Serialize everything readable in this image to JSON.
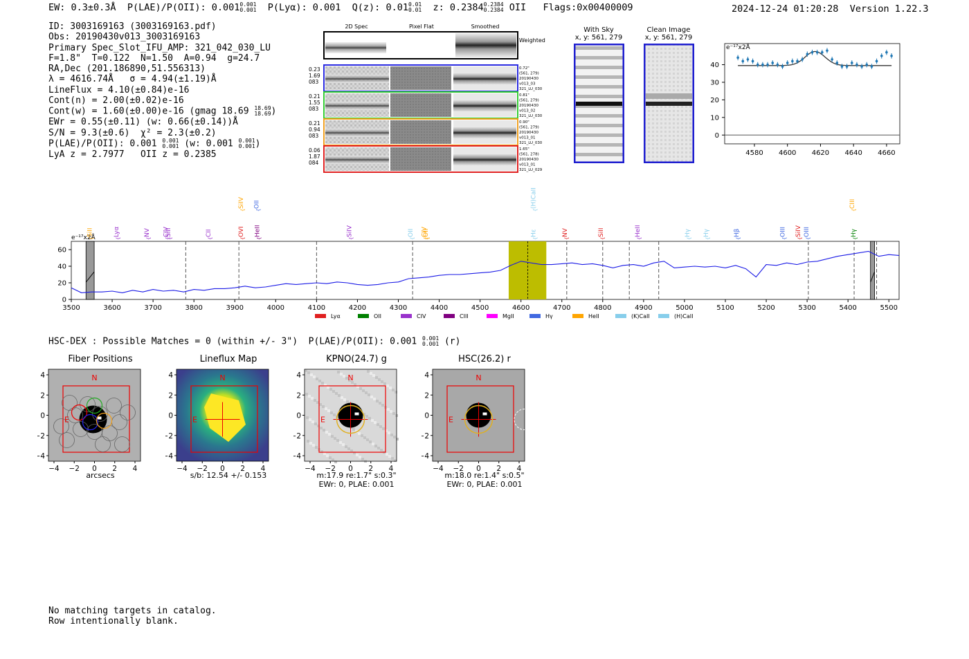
{
  "header": {
    "ew_label": "EW: 0.3±0.3Å",
    "plae_label": "P(LAE)/P(OII): 0.001",
    "plae_hi": "0.001",
    "plae_lo": "0.001",
    "plya_label": "P(Lyα): 0.001",
    "qz_label": "Q(z): 0.01",
    "qz_hi": "0.01",
    "qz_lo": "0.01",
    "z_label": "z: 0.2384",
    "z_hi": "0.2384",
    "z_lo": "0.2384",
    "line_label": "OII",
    "flags": "Flags:0x00400009",
    "timestamp": "2024-12-24 01:20:28",
    "version": "Version 1.22.3"
  },
  "info": {
    "id": "ID: 3003169163 (3003169163.pdf)",
    "obs": "Obs: 20190430v013_3003169163",
    "primary": "Primary Spec_Slot_IFU_AMP: 321_042_030_LU",
    "fparams": "F=1.8\"  T=0.122  N=1.50  A=0.94  g=24.7",
    "radec": "RA,Dec (201.186890,51.556313)",
    "lambda": "λ = 4616.74Å   σ = 4.94(±1.19)Å",
    "lineflux": "LineFlux = 4.10(±0.84)e-16",
    "contn": "Cont(n) = 2.00(±0.02)e-16",
    "contw": "Cont(w) = 1.60(±0.00)e-16 (gmag 18.69",
    "gmag_hi": "18.69",
    "gmag_lo": "18.69",
    "ewr": "EWr = 0.55(±0.11) (w: 0.66(±0.14))Å",
    "sn": "S/N = 9.3(±0.6)  χ² = 2.3(±0.2)",
    "plae": "P(LAE)/P(OII): 0.001",
    "plae_hi": "0.001",
    "plae_lo": "0.001",
    "plae_w": "(w: 0.001",
    "plaew_hi": "0.001",
    "plaew_lo": "0.001",
    "lyaz": "LyA z = 2.7977   OII z = 0.2385"
  },
  "fiber_panel": {
    "headers": [
      "2D Spec",
      "Pixel Flat",
      "Smoothed"
    ],
    "weighted_label": "Weighted Sum",
    "rows": [
      {
        "left": [
          "0.23",
          "1.69",
          "083"
        ],
        "right": [
          "0.72\"",
          "(561, 279)",
          "20190430",
          "v013_03",
          "321_LU_030"
        ],
        "color": "#2a2ae0"
      },
      {
        "left": [
          "0.21",
          "1.55",
          "083"
        ],
        "right": [
          "0.81\"",
          "(561, 279)",
          "20190430",
          "v013_02",
          "321_LU_030"
        ],
        "color": "#33cc33"
      },
      {
        "left": [
          "0.21",
          "0.94",
          "083"
        ],
        "right": [
          "0.90\"",
          "(561, 279)",
          "20190430",
          "v013_01",
          "321_LU_030"
        ],
        "color": "#f0a020"
      },
      {
        "left": [
          "0.06",
          "1.87",
          "084"
        ],
        "right": [
          "1.65\"",
          "(561, 278)",
          "20190430",
          "v013_01",
          "321_LU_029"
        ],
        "color": "#e02020"
      }
    ]
  },
  "sky_panel": {
    "with_sky": "With Sky",
    "with_sky_xy": "x, y: 561, 279",
    "clean": "Clean Image",
    "clean_xy": "x, y: 561, 279"
  },
  "zoom_chart": {
    "type": "scatter",
    "unit": "e⁻¹⁷x2Å",
    "xlim": [
      4562,
      4668
    ],
    "ylim": [
      -5,
      52
    ],
    "xticks": [
      4580,
      4600,
      4620,
      4640,
      4660
    ],
    "yticks": [
      0,
      10,
      20,
      30,
      40
    ],
    "x": [
      4570,
      4573,
      4576,
      4579,
      4582,
      4585,
      4588,
      4591,
      4594,
      4597,
      4600,
      4603,
      4606,
      4609,
      4612,
      4615,
      4618,
      4621,
      4624,
      4627,
      4630,
      4633,
      4636,
      4639,
      4642,
      4645,
      4648,
      4651,
      4654,
      4657,
      4660,
      4663
    ],
    "y": [
      44,
      42,
      43,
      42,
      40,
      40,
      40,
      41,
      40,
      39,
      41,
      42,
      42,
      43,
      46,
      47,
      47,
      47,
      48,
      43,
      41,
      39,
      39,
      41,
      40,
      39,
      40,
      39,
      42,
      45,
      47,
      45
    ],
    "fit_center": 4616.74,
    "fit_base": 39.5,
    "fit_amp": 8
  },
  "chart_data": {
    "type": "line",
    "title": "",
    "unit": "e⁻¹⁷x2Å",
    "xlim": [
      3500,
      5525
    ],
    "ylim": [
      0,
      70
    ],
    "xticks": [
      3500,
      3600,
      3700,
      3800,
      3900,
      4000,
      4100,
      4200,
      4300,
      4400,
      4500,
      4600,
      4700,
      4800,
      4900,
      5000,
      5100,
      5200,
      5300,
      5400,
      5500
    ],
    "yticks": [
      0,
      20,
      40,
      60
    ],
    "series": [
      {
        "name": "spectrum",
        "x": [
          3500,
          3525,
          3550,
          3575,
          3600,
          3625,
          3650,
          3675,
          3700,
          3725,
          3750,
          3775,
          3800,
          3825,
          3850,
          3875,
          3900,
          3925,
          3950,
          3975,
          4000,
          4025,
          4050,
          4075,
          4100,
          4125,
          4150,
          4175,
          4200,
          4225,
          4250,
          4275,
          4300,
          4325,
          4350,
          4375,
          4400,
          4425,
          4450,
          4475,
          4500,
          4525,
          4550,
          4575,
          4600,
          4625,
          4650,
          4675,
          4700,
          4725,
          4750,
          4775,
          4800,
          4825,
          4850,
          4875,
          4900,
          4925,
          4950,
          4975,
          5000,
          5025,
          5050,
          5075,
          5100,
          5125,
          5150,
          5175,
          5200,
          5225,
          5250,
          5275,
          5300,
          5325,
          5350,
          5375,
          5400,
          5425,
          5450,
          5475,
          5500,
          5525
        ],
        "values": [
          14,
          8,
          9,
          9,
          10,
          8,
          11,
          9,
          12,
          10,
          11,
          9,
          12,
          11,
          13,
          13,
          14,
          16,
          14,
          15,
          17,
          19,
          18,
          19,
          20,
          19,
          21,
          20,
          18,
          17,
          18,
          20,
          21,
          25,
          26,
          27,
          29,
          30,
          30,
          31,
          32,
          33,
          35,
          41,
          46,
          44,
          42,
          42,
          43,
          44,
          42,
          43,
          41,
          38,
          41,
          42,
          40,
          44,
          46,
          38,
          39,
          40,
          39,
          40,
          38,
          41,
          37,
          27,
          42,
          41,
          44,
          42,
          45,
          46,
          49,
          52,
          54,
          56,
          58,
          52,
          54,
          53
        ]
      }
    ],
    "lines": [
      {
        "name": "SiII",
        "wave": 3550,
        "color": "#ffa500",
        "row": 1
      },
      {
        "name": "Lyα",
        "wave": 3615,
        "color": "#9932cc",
        "row": 1
      },
      {
        "name": "NV",
        "wave": 3690,
        "color": "#9932cc",
        "row": 1
      },
      {
        "name": "SiII",
        "wave": 3742,
        "color": "#9932cc",
        "row": 1
      },
      {
        "name": "CIV",
        "wave": 3736,
        "color": "#9932cc",
        "row": 1
      },
      {
        "name": "CII",
        "wave": 3840,
        "color": "#9932cc",
        "row": 1
      },
      {
        "name": "OVI",
        "wave": 3920,
        "color": "#e02020",
        "row": 1
      },
      {
        "name": "SiIV",
        "wave": 3920,
        "color": "#ffa500",
        "row": 2
      },
      {
        "name": "OII",
        "wave": 3958,
        "color": "#4169e1",
        "row": 2
      },
      {
        "name": "HeII",
        "wave": 3960,
        "color": "#800080",
        "row": 1
      },
      {
        "name": "SiIV",
        "wave": 4185,
        "color": "#9932cc",
        "row": 1
      },
      {
        "name": "OII",
        "wave": 4335,
        "color": "#87ceeb",
        "row": 1
      },
      {
        "name": "CIV",
        "wave": 4368,
        "color": "#ffa500",
        "row": 1
      },
      {
        "name": "OII",
        "wave": 4372,
        "color": "#ffa500",
        "row": 1
      },
      {
        "name": "(H)CaII",
        "wave": 4635,
        "color": "#87ceeb",
        "row": 2
      },
      {
        "name": "Hε",
        "wave": 4635,
        "color": "#87ceeb",
        "row": 1
      },
      {
        "name": "NV",
        "wave": 4712,
        "color": "#e02020",
        "row": 1
      },
      {
        "name": "SiII",
        "wave": 4800,
        "color": "#e02020",
        "row": 1
      },
      {
        "name": "HeII",
        "wave": 4890,
        "color": "#9932cc",
        "row": 1
      },
      {
        "name": "Hγ",
        "wave": 5012,
        "color": "#87ceeb",
        "row": 1
      },
      {
        "name": "Hγ",
        "wave": 5058,
        "color": "#87ceeb",
        "row": 1
      },
      {
        "name": "Hβ",
        "wave": 5132,
        "color": "#4169e1",
        "row": 1
      },
      {
        "name": "OIII",
        "wave": 5245,
        "color": "#4169e1",
        "row": 1
      },
      {
        "name": "SiIV",
        "wave": 5283,
        "color": "#e02020",
        "row": 1
      },
      {
        "name": "OIII",
        "wave": 5303,
        "color": "#4169e1",
        "row": 1
      },
      {
        "name": "CIII",
        "wave": 5415,
        "color": "#ffa500",
        "row": 2
      },
      {
        "name": "Hγ",
        "wave": 5418,
        "color": "#008000",
        "row": 1
      }
    ],
    "dashed": [
      3780,
      3910,
      4100,
      4335,
      4712,
      4800,
      4865,
      4937,
      5303,
      5415,
      5470
    ],
    "highlight": [
      4570,
      4662
    ],
    "highlight_center": 4616.74,
    "masked": [
      [
        3536,
        3556
      ],
      [
        5455,
        5465
      ]
    ],
    "legend": [
      {
        "name": "Lyα",
        "color": "#e02020"
      },
      {
        "name": "OII",
        "color": "#008000"
      },
      {
        "name": "CIV",
        "color": "#9932cc"
      },
      {
        "name": "CIII",
        "color": "#800080"
      },
      {
        "name": "MgII",
        "color": "#ff00ff"
      },
      {
        "name": "Hγ",
        "color": "#4169e1"
      },
      {
        "name": "HeII",
        "color": "#ffa500"
      },
      {
        "name": "(K)CaII",
        "color": "#87ceeb"
      },
      {
        "name": "(H)CaII",
        "color": "#87ceeb"
      }
    ]
  },
  "hsc": {
    "line": "HSC-DEX : Possible Matches = 0 (within +/- 3\")  P(LAE)/P(OII): 0.001",
    "hi": "0.001",
    "lo": "0.001",
    "band": "(r)"
  },
  "cutouts": [
    {
      "title": "Fiber Positions",
      "xlabel": "arcsecs",
      "sub1": "",
      "sub2": "",
      "bg": "gray"
    },
    {
      "title": "Lineflux Map",
      "xlabel": "s/b: 12.54 +/- 0.153",
      "sub1": "",
      "sub2": "",
      "bg": "viridis"
    },
    {
      "title": "KPNO(24.7) g",
      "xlabel": "m:17.9  re:1.7\"  s:0.3\"",
      "sub1": "EWr: 0, PLAE: 0.001",
      "sub2": "",
      "bg": "noisy"
    },
    {
      "title": "HSC(26.2) r",
      "xlabel": "m:18.0  re:1.4\"  s:0.5\"",
      "sub1": "EWr: 0, PLAE: 0.001",
      "sub2": "",
      "bg": "smooth"
    }
  ],
  "compass": {
    "north": "N",
    "east": "E"
  },
  "axis_ticks": [
    "4",
    "2",
    "0",
    "−2",
    "−4"
  ],
  "footer": {
    "line1": "No matching targets in catalog.",
    "line2": "Row intentionally blank."
  }
}
